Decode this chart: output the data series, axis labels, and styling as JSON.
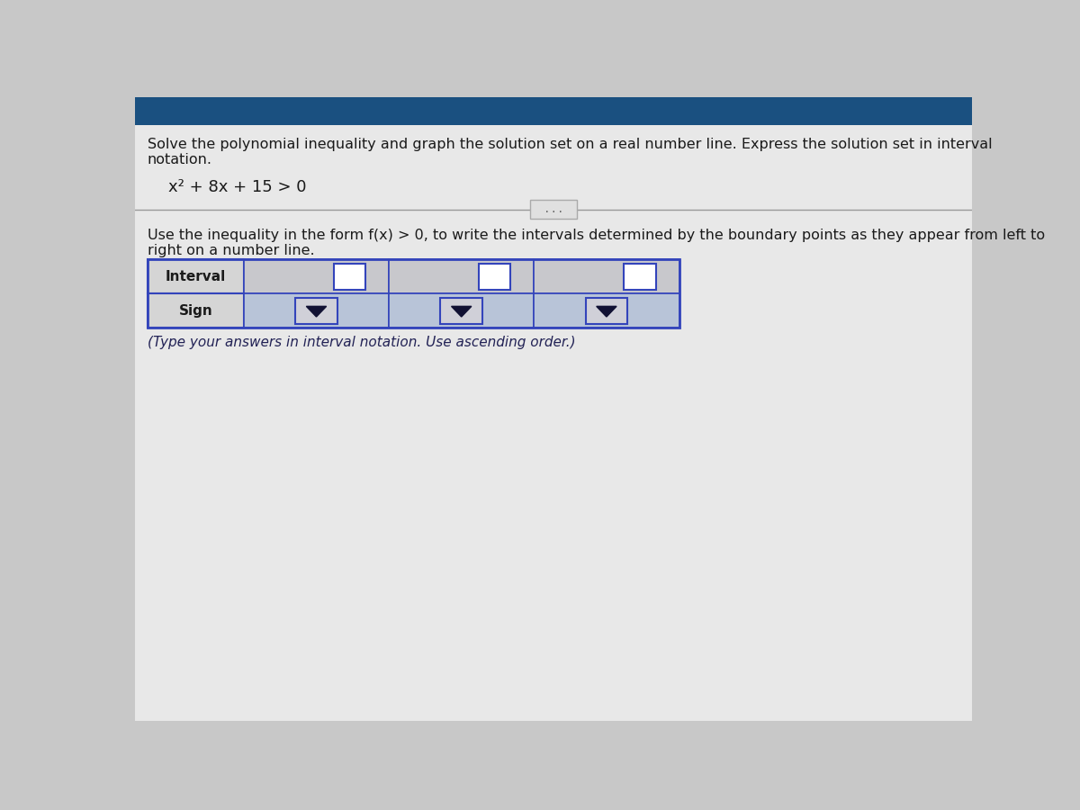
{
  "bg_color": "#c8c8c8",
  "title_text1": "Solve the polynomial inequality and graph the solution set on a real number line. Express the solution set in interval",
  "title_text2": "notation.",
  "equation": "x² + 8x + 15 > 0",
  "divider_button_text": "...",
  "instruction_text1": "Use the inequality in the form f(x) > 0, to write the intervals determined by the boundary points as they appear from left to",
  "instruction_text2": "right on a number line.",
  "table_header_col1": "Interval",
  "table_header_col2": "Sign",
  "footnote": "(Type your answers in interval notation. Use ascending order.)",
  "dark_text": "#1a1a1a",
  "table_border_color": "#3344bb",
  "table_header_bg": "#d8d8d8",
  "interval_cell_bg": "#c8c8cc",
  "sign_cell_bg": "#b8c4d8",
  "input_box_bg": "#ffffff",
  "input_border_color": "#3344bb",
  "dropdown_box_bg": "#d0d0d8",
  "dropdown_arrow_color": "#111133",
  "top_bar_color": "#1a5080",
  "footnote_color": "#222255"
}
